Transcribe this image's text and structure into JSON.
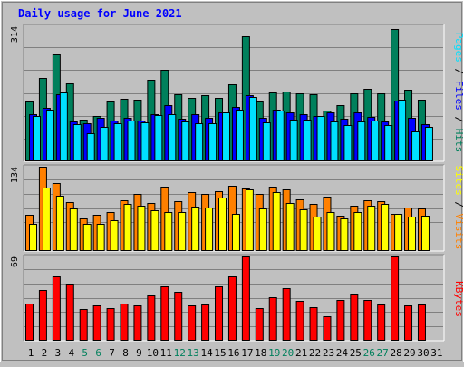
{
  "chart_data": {
    "type": "bar",
    "title": "Daily usage for June 2021",
    "categories": [
      "1",
      "2",
      "3",
      "4",
      "5",
      "6",
      "7",
      "8",
      "9",
      "10",
      "11",
      "12",
      "13",
      "14",
      "15",
      "16",
      "17",
      "18",
      "19",
      "20",
      "21",
      "22",
      "23",
      "24",
      "25",
      "26",
      "27",
      "28",
      "29",
      "30",
      "31"
    ],
    "weekend_days": [
      "5",
      "6",
      "12",
      "13",
      "19",
      "20",
      "26",
      "27"
    ],
    "panels": [
      {
        "id": "hits_files_pages",
        "y_tick_label": "314",
        "ylim": [
          0,
          314
        ],
        "legend": [
          "Pages",
          "Files",
          "Hits"
        ],
        "series": [
          {
            "name": "Hits",
            "color": "#00805c",
            "values": [
              138,
              191,
              246,
              180,
              95,
              104,
              136,
              144,
              142,
              188,
              211,
              153,
              145,
              152,
              146,
              178,
              289,
              136,
              159,
              160,
              155,
              153,
              115,
              128,
              156,
              166,
              155,
              306,
              164,
              141,
              0
            ]
          },
          {
            "name": "Files",
            "color": "#0000ff",
            "values": [
              108,
              122,
              154,
              91,
              86,
              98,
              93,
              98,
              92,
              108,
              128,
              96,
              108,
              99,
              111,
              124,
              151,
              100,
              119,
              111,
              108,
              104,
              112,
              97,
              111,
              101,
              91,
              140,
              100,
              85,
              0
            ]
          },
          {
            "name": "Pages",
            "color": "#00e0ff",
            "values": [
              103,
              119,
              158,
              84,
              63,
              78,
              86,
              92,
              88,
              105,
              107,
              91,
              86,
              86,
              112,
              118,
              148,
              88,
              115,
              94,
              95,
              104,
              91,
              82,
              91,
              93,
              82,
              142,
              67,
              77,
              0
            ]
          }
        ]
      },
      {
        "id": "visits_sites",
        "y_tick_label": "134",
        "ylim": [
          0,
          134
        ],
        "legend": [
          "Sites",
          "Visits"
        ],
        "series": [
          {
            "name": "Visits",
            "color": "#ff8000",
            "values": [
              56,
              132,
              106,
              76,
              51,
              56,
              60,
              79,
              89,
              75,
              101,
              78,
              92,
              90,
              93,
              103,
              98,
              89,
              101,
              97,
              81,
              73,
              85,
              55,
              70,
              79,
              78,
              58,
              68,
              66,
              0
            ]
          },
          {
            "name": "Sites",
            "color": "#ffff00",
            "values": [
              42,
              100,
              86,
              66,
              42,
              42,
              47,
              74,
              70,
              63,
              60,
              61,
              69,
              68,
              84,
              58,
              96,
              66,
              92,
              75,
              65,
              54,
              60,
              50,
              61,
              71,
              73,
              57,
              54,
              55,
              0
            ]
          }
        ]
      },
      {
        "id": "kbytes",
        "y_tick_label": "69",
        "ylim": [
          0,
          69
        ],
        "legend": [
          "KBytes"
        ],
        "series": [
          {
            "name": "KBytes",
            "color": "#ff0000",
            "values": [
              30,
              41,
              52,
              46,
              25,
              28,
              26,
              30,
              28,
              36,
              44,
              39,
              28,
              29,
              44,
              52,
              68,
              26,
              35,
              42,
              32,
              27,
              19,
              33,
              38,
              33,
              29,
              68,
              28,
              29,
              0
            ]
          }
        ]
      }
    ]
  },
  "colors": {
    "background": "#c0c0c0",
    "plot_background": "#c0c0c0",
    "title": "#0000ff",
    "label": "#000000",
    "weekend_label": "#00805c",
    "grid": "#808080"
  }
}
